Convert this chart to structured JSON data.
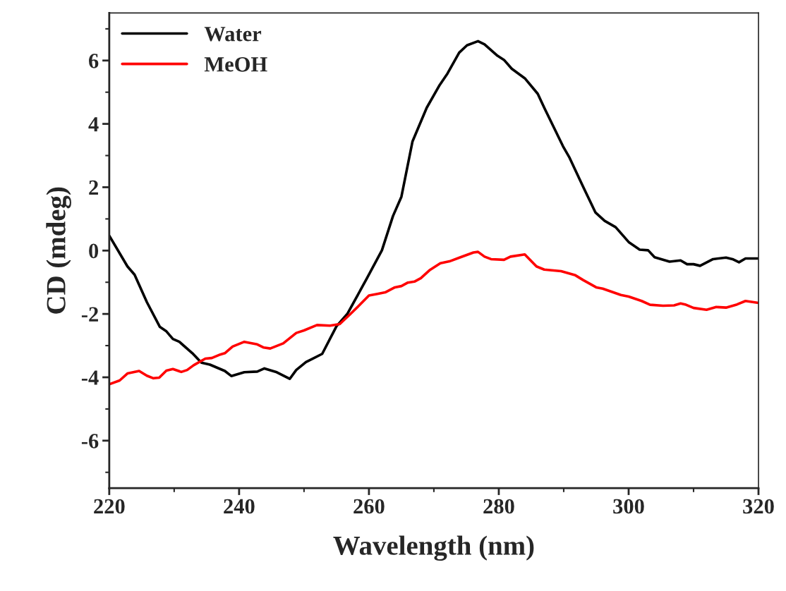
{
  "chart_data": {
    "type": "line",
    "xlabel": "Wavelength (nm)",
    "ylabel": "CD (mdeg)",
    "xlim": [
      220,
      320
    ],
    "xticks": [
      220,
      240,
      260,
      280,
      300,
      320
    ],
    "ylim": [
      -7.5,
      7.5
    ],
    "yticks": [
      -6,
      -4,
      -2,
      0,
      2,
      4,
      6
    ],
    "grid": false,
    "legend": "top left",
    "line_style": "solid",
    "series": [
      {
        "name": "Water",
        "color": "#000000",
        "x": [
          220,
          222.8,
          223.9,
          225.8,
          227.8,
          228.8,
          229.8,
          230.8,
          232.8,
          234.2,
          235.5,
          237.8,
          238.8,
          240.8,
          242.8,
          243.9,
          245.8,
          247.8,
          248.8,
          250.3,
          252.8,
          255,
          256.7,
          259.7,
          262,
          263.7,
          265,
          266.7,
          268.9,
          270.9,
          272.1,
          273.9,
          275.1,
          276.8,
          277.8,
          279.8,
          280.8,
          282,
          284,
          286,
          287,
          289.9,
          290.9,
          293,
          294.9,
          296.3,
          298,
          300,
          301.7,
          303,
          304,
          306.3,
          308,
          309,
          310,
          311,
          313,
          315,
          316,
          317,
          318,
          320
        ],
        "values": [
          0.47,
          -0.5,
          -0.76,
          -1.63,
          -2.41,
          -2.55,
          -2.79,
          -2.88,
          -3.24,
          -3.54,
          -3.6,
          -3.8,
          -3.96,
          -3.84,
          -3.82,
          -3.72,
          -3.84,
          -4.05,
          -3.77,
          -3.52,
          -3.26,
          -2.39,
          -1.99,
          -0.87,
          0.01,
          1.09,
          1.7,
          3.44,
          4.51,
          5.23,
          5.59,
          6.25,
          6.48,
          6.61,
          6.51,
          6.15,
          6.02,
          5.74,
          5.44,
          4.95,
          4.51,
          3.29,
          2.93,
          2.01,
          1.2,
          0.94,
          0.74,
          0.27,
          0.03,
          0.01,
          -0.21,
          -0.35,
          -0.31,
          -0.43,
          -0.43,
          -0.48,
          -0.27,
          -0.22,
          -0.27,
          -0.37,
          -0.25,
          -0.25
        ]
      },
      {
        "name": "MeOH",
        "color": "#ff0000",
        "x": [
          220,
          221.6,
          222.8,
          224.6,
          225.8,
          226.8,
          227.7,
          228.8,
          229.8,
          231.1,
          232,
          233,
          234.8,
          235.8,
          237.1,
          237.8,
          239,
          240.8,
          242.8,
          243.8,
          244.8,
          246.8,
          248.8,
          250,
          252,
          254,
          255.5,
          257,
          258.5,
          260,
          261.3,
          262.5,
          264,
          265,
          266,
          267,
          268,
          269.4,
          271,
          272.4,
          274.1,
          276.1,
          276.8,
          277.8,
          278.8,
          280.8,
          281.8,
          284,
          285.8,
          287,
          289.6,
          291.8,
          293,
          295,
          296,
          298.8,
          300,
          302,
          303.3,
          305.3,
          307,
          308,
          308.7,
          310,
          312,
          313.5,
          315,
          316.7,
          318,
          320
        ],
        "values": [
          -4.22,
          -4.1,
          -3.88,
          -3.8,
          -3.95,
          -4.03,
          -4.01,
          -3.79,
          -3.74,
          -3.83,
          -3.77,
          -3.62,
          -3.41,
          -3.39,
          -3.28,
          -3.24,
          -3.03,
          -2.88,
          -2.96,
          -3.06,
          -3.09,
          -2.93,
          -2.6,
          -2.52,
          -2.35,
          -2.37,
          -2.32,
          -2.03,
          -1.73,
          -1.42,
          -1.37,
          -1.32,
          -1.16,
          -1.12,
          -1.01,
          -0.98,
          -0.87,
          -0.61,
          -0.4,
          -0.34,
          -0.21,
          -0.06,
          -0.04,
          -0.19,
          -0.27,
          -0.29,
          -0.19,
          -0.12,
          -0.5,
          -0.6,
          -0.65,
          -0.78,
          -0.93,
          -1.16,
          -1.2,
          -1.4,
          -1.45,
          -1.59,
          -1.71,
          -1.74,
          -1.73,
          -1.67,
          -1.7,
          -1.81,
          -1.87,
          -1.78,
          -1.8,
          -1.7,
          -1.59,
          -1.65
        ]
      }
    ]
  }
}
